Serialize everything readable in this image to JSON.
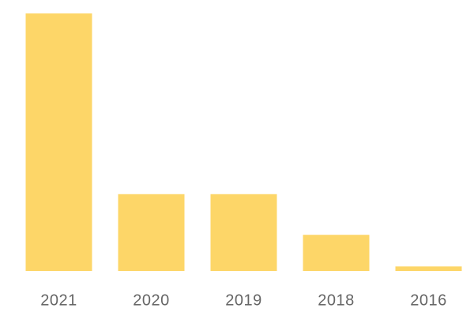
{
  "chart_data": {
    "type": "bar",
    "categories": [
      "2021",
      "2020",
      "2019",
      "2018",
      "2016"
    ],
    "values": [
      57,
      17,
      17,
      8,
      1
    ],
    "color": "#fdd668"
  }
}
